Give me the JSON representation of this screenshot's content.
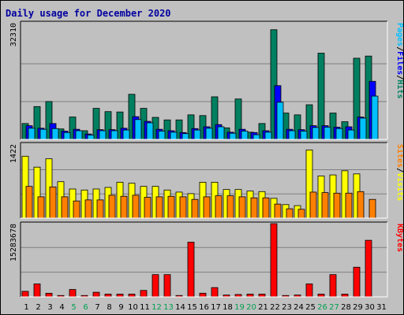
{
  "title": "Daily usage for December 2020",
  "chart_data": [
    {
      "type": "bar",
      "panel": "hits-files-pages",
      "categories": [
        "1",
        "2",
        "3",
        "4",
        "5",
        "6",
        "7",
        "8",
        "9",
        "10",
        "11",
        "12",
        "13",
        "14",
        "15",
        "16",
        "17",
        "18",
        "19",
        "20",
        "21",
        "22",
        "23",
        "24",
        "25",
        "26",
        "27",
        "28",
        "29",
        "30",
        "31"
      ],
      "ymax_label": "32310",
      "ylim": [
        0,
        32310
      ],
      "series": [
        {
          "name": "Hits",
          "color": "#008060",
          "values": [
            4400,
            9100,
            10500,
            2900,
            6200,
            2400,
            8600,
            7700,
            7600,
            12500,
            8600,
            6100,
            5400,
            5400,
            6800,
            6600,
            11800,
            3200,
            11200,
            2000,
            4400,
            30400,
            7300,
            6800,
            9600,
            23900,
            7300,
            4900,
            22500,
            23100,
            0
          ]
        },
        {
          "name": "Files",
          "color": "#0000ff",
          "values": [
            3800,
            3100,
            4400,
            2300,
            2800,
            1500,
            2700,
            2700,
            3100,
            6300,
            5000,
            2800,
            2400,
            1900,
            3000,
            3500,
            4100,
            2000,
            2800,
            1900,
            2400,
            14900,
            2800,
            2700,
            3800,
            3800,
            3400,
            3500,
            6200,
            16100,
            0
          ]
        },
        {
          "name": "Pages",
          "color": "#00c0ff",
          "values": [
            3100,
            2800,
            3000,
            1900,
            2400,
            1200,
            2400,
            2400,
            2600,
            5500,
            4600,
            2300,
            2000,
            1600,
            2600,
            3100,
            3500,
            1700,
            2300,
            1300,
            2000,
            10300,
            2400,
            2300,
            3300,
            3400,
            3000,
            2600,
            5900,
            12000,
            0
          ]
        }
      ],
      "axis_label_parts": [
        {
          "text": "Pages",
          "color": "#00c0ff"
        },
        {
          "text": "/",
          "color": "#000000"
        },
        {
          "text": "Files",
          "color": "#0000ff"
        },
        {
          "text": "/",
          "color": "#000000"
        },
        {
          "text": "Hits",
          "color": "#008060"
        }
      ]
    },
    {
      "type": "bar",
      "panel": "visits-sites",
      "categories": [
        "1",
        "2",
        "3",
        "4",
        "5",
        "6",
        "7",
        "8",
        "9",
        "10",
        "11",
        "12",
        "13",
        "14",
        "15",
        "16",
        "17",
        "18",
        "19",
        "20",
        "21",
        "22",
        "23",
        "24",
        "25",
        "26",
        "27",
        "28",
        "29",
        "30",
        "31"
      ],
      "ymax_label": "1422",
      "ylim": [
        0,
        1422
      ],
      "series": [
        {
          "name": "Visits",
          "color": "#ffff00",
          "values": [
            1190,
            980,
            1140,
            700,
            560,
            540,
            560,
            590,
            690,
            670,
            610,
            610,
            540,
            500,
            470,
            690,
            690,
            550,
            550,
            520,
            510,
            380,
            260,
            240,
            1310,
            810,
            830,
            910,
            850,
            0,
            0
          ]
        },
        {
          "name": "Sites",
          "color": "#ff8000",
          "values": [
            610,
            410,
            600,
            410,
            330,
            350,
            350,
            440,
            420,
            440,
            400,
            410,
            420,
            410,
            360,
            410,
            430,
            430,
            410,
            390,
            390,
            270,
            180,
            170,
            500,
            490,
            480,
            480,
            510,
            360,
            0
          ]
        }
      ],
      "axis_label_parts": [
        {
          "text": "Sites",
          "color": "#ff8000"
        },
        {
          "text": "/",
          "color": "#000000"
        },
        {
          "text": "Visits",
          "color": "#ffff00"
        }
      ]
    },
    {
      "type": "bar",
      "panel": "kbytes",
      "categories": [
        "1",
        "2",
        "3",
        "4",
        "5",
        "6",
        "7",
        "8",
        "9",
        "10",
        "11",
        "12",
        "13",
        "14",
        "15",
        "16",
        "17",
        "18",
        "19",
        "20",
        "21",
        "22",
        "23",
        "24",
        "25",
        "26",
        "27",
        "28",
        "29",
        "30",
        "31"
      ],
      "ymax_label": "15283678",
      "ylim": [
        0,
        15283678
      ],
      "series": [
        {
          "name": "KBytes",
          "color": "#ff0000",
          "values": [
            1160000,
            2710000,
            760000,
            290000,
            1550000,
            290000,
            970000,
            580000,
            580000,
            580000,
            1350000,
            4650000,
            4650000,
            290000,
            11420000,
            770000,
            1940000,
            390000,
            500000,
            580000,
            580000,
            15283678,
            290000,
            390000,
            2710000,
            580000,
            4650000,
            580000,
            6200000,
            11810000,
            0
          ]
        }
      ],
      "axis_label_parts": [
        {
          "text": "KBytes",
          "color": "#ff0000"
        }
      ]
    }
  ],
  "x_axis": {
    "labels": [
      "1",
      "2",
      "3",
      "4",
      "5",
      "6",
      "7",
      "8",
      "9",
      "10",
      "11",
      "12",
      "13",
      "14",
      "15",
      "16",
      "17",
      "18",
      "19",
      "20",
      "21",
      "22",
      "23",
      "24",
      "25",
      "26",
      "27",
      "28",
      "29",
      "30",
      "31"
    ],
    "weekend_days": [
      5,
      6,
      12,
      13,
      19,
      20,
      26,
      27
    ],
    "weekday_color": "#000000",
    "weekend_color": "#00a050"
  }
}
